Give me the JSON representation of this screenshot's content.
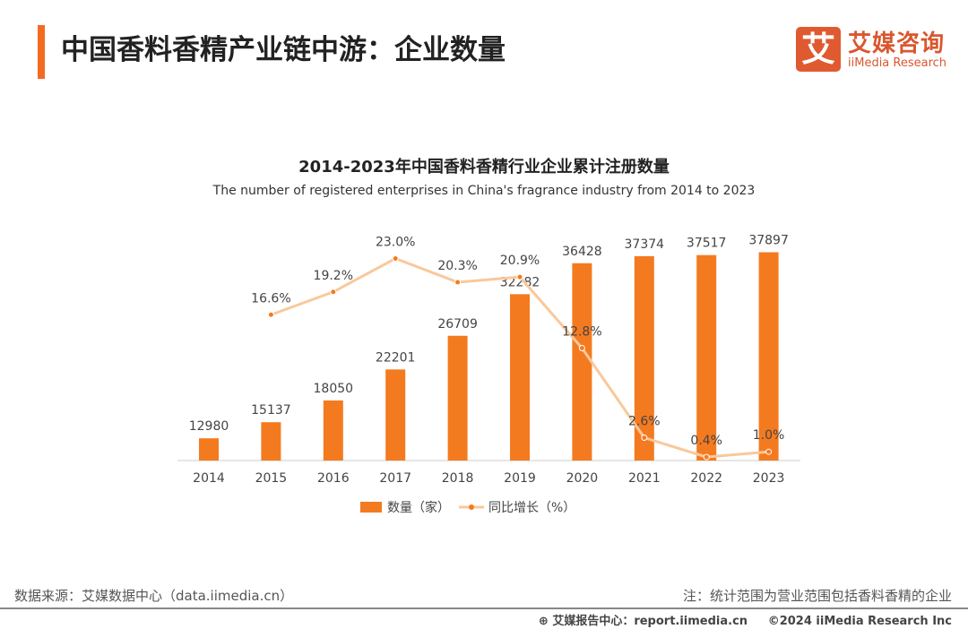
{
  "header": {
    "title": "中国香料香精产业链中游：企业数量"
  },
  "logo": {
    "mark": "艾",
    "cn": "艾媒咨询",
    "en": "iiMedia Research"
  },
  "colors": {
    "accent": "#f26b21",
    "bar": "#f47a20",
    "line": "#f9c89b",
    "brand": "#e05a30"
  },
  "chart_data": {
    "type": "bar+line",
    "title": "2014-2023年中国香料香精行业企业累计注册数量",
    "subtitle": "The number of registered enterprises in China's fragrance industry from 2014 to 2023",
    "categories": [
      "2014",
      "2015",
      "2016",
      "2017",
      "2018",
      "2019",
      "2020",
      "2021",
      "2022",
      "2023"
    ],
    "series": [
      {
        "name": "数量（家）",
        "type": "bar",
        "values": [
          12980,
          15137,
          18050,
          22201,
          26709,
          32282,
          36428,
          37374,
          37517,
          37897
        ]
      },
      {
        "name": "同比增长（%）",
        "type": "line",
        "values": [
          null,
          16.6,
          19.2,
          23.0,
          20.3,
          20.9,
          12.8,
          2.6,
          0.4,
          1.0
        ],
        "labels": [
          "",
          "16.6%",
          "19.2%",
          "23.0%",
          "20.3%",
          "20.9%",
          "12.8%",
          "2.6%",
          "0.4%",
          "1.0%"
        ]
      }
    ],
    "ylim_bar": [
      10000,
      40000
    ],
    "ylim_line": [
      0,
      25.5
    ],
    "grid": false,
    "legend": "bottom"
  },
  "footer": {
    "source": "数据来源：艾媒数据中心（data.iimedia.cn）",
    "note": "注：统计范围为营业范围包括香料香精的企业",
    "report": "艾媒报告中心：report.iimedia.cn",
    "copyright": "©2024  iiMedia Research  Inc"
  }
}
